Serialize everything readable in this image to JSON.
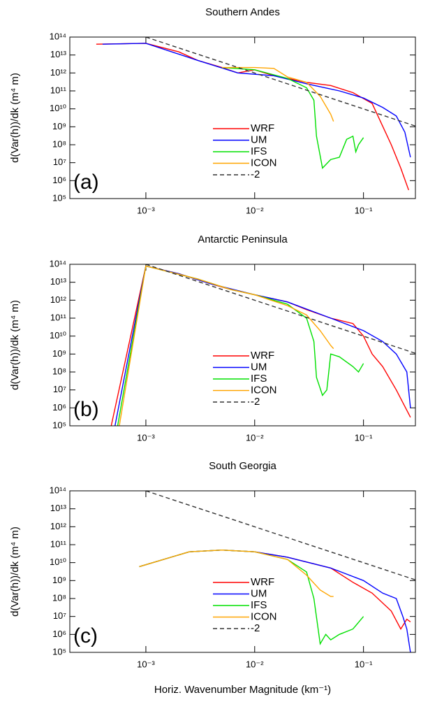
{
  "chart_data": [
    {
      "type": "line",
      "title": "Southern Andes",
      "panel_label": "(a)",
      "ylabel": "d(Var(h))/dk (m⁴ m)",
      "log_x": true,
      "log_y": true,
      "xlim": [
        0.0002,
        0.3
      ],
      "ylim": [
        100000.0,
        100000000000000.0
      ],
      "xticks": [
        {
          "value": 0.001,
          "label": "10⁻³"
        },
        {
          "value": 0.01,
          "label": "10⁻²"
        },
        {
          "value": 0.1,
          "label": "10⁻¹"
        }
      ],
      "yticks": [
        {
          "value": 100000.0,
          "label": "10⁵"
        },
        {
          "value": 1000000.0,
          "label": "10⁶"
        },
        {
          "value": 10000000.0,
          "label": "10⁷"
        },
        {
          "value": 100000000.0,
          "label": "10⁸"
        },
        {
          "value": 1000000000.0,
          "label": "10⁹"
        },
        {
          "value": 10000000000.0,
          "label": "10¹⁰"
        },
        {
          "value": 100000000000.0,
          "label": "10¹¹"
        },
        {
          "value": 1000000000000.0,
          "label": "10¹²"
        },
        {
          "value": 10000000000000.0,
          "label": "10¹³"
        },
        {
          "value": 100000000000000.0,
          "label": "10¹⁴"
        }
      ],
      "series": [
        {
          "name": "WRF",
          "color": "#ff0000",
          "x": [
            0.00035,
            0.001,
            0.002,
            0.003,
            0.005,
            0.007,
            0.01,
            0.015,
            0.02,
            0.03,
            0.05,
            0.08,
            0.12,
            0.18,
            0.22,
            0.26
          ],
          "values": [
            40000000000000.0,
            45000000000000.0,
            15000000000000.0,
            5000000000000.0,
            2000000000000.0,
            1000000000000.0,
            1500000000000.0,
            700000000000.0,
            500000000000.0,
            300000000000.0,
            200000000000.0,
            80000000000.0,
            20000000000.0,
            100000000.0,
            5000000.0,
            300000.0
          ]
        },
        {
          "name": "UM",
          "color": "#0000ff",
          "x": [
            0.0004,
            0.001,
            0.003,
            0.007,
            0.015,
            0.03,
            0.06,
            0.1,
            0.15,
            0.2,
            0.24,
            0.27
          ],
          "values": [
            40000000000000.0,
            45000000000000.0,
            5000000000000.0,
            1000000000000.0,
            700000000000.0,
            250000000000.0,
            100000000000.0,
            40000000000.0,
            12000000000.0,
            4000000000.0,
            500000000.0,
            20000000.0
          ]
        },
        {
          "name": "IFS",
          "color": "#00e000",
          "x": [
            0.005,
            0.01,
            0.02,
            0.03,
            0.035,
            0.037,
            0.042,
            0.05,
            0.06,
            0.07,
            0.08,
            0.085,
            0.09,
            0.1
          ],
          "values": [
            2000000000000.0,
            1500000000000.0,
            500000000000.0,
            150000000000.0,
            30000000000.0,
            300000000.0,
            5000000.0,
            15000000.0,
            20000000.0,
            200000000.0,
            300000000.0,
            40000000.0,
            100000000.0,
            250000000.0
          ]
        },
        {
          "name": "ICON",
          "color": "#ffa500",
          "x": [
            0.005,
            0.01,
            0.015,
            0.02,
            0.03,
            0.04,
            0.05,
            0.053
          ],
          "values": [
            2000000000000.0,
            2000000000000.0,
            1800000000000.0,
            600000000000.0,
            300000000000.0,
            50000000000.0,
            5000000000.0,
            2000000000.0
          ]
        },
        {
          "name": "-2",
          "color": "#333333",
          "linestyle": "dashed",
          "x": [
            0.001,
            0.3
          ],
          "values": [
            100000000000000.0,
            1100000000.0
          ]
        }
      ]
    },
    {
      "type": "line",
      "title": "Antarctic Peninsula",
      "panel_label": "(b)",
      "ylabel": "d(Var(h))/dk (m⁴ m)",
      "log_x": true,
      "log_y": true,
      "xlim": [
        0.0002,
        0.3
      ],
      "ylim": [
        100000.0,
        100000000000000.0
      ],
      "xticks": [
        {
          "value": 0.001,
          "label": "10⁻³"
        },
        {
          "value": 0.01,
          "label": "10⁻²"
        },
        {
          "value": 0.1,
          "label": "10⁻¹"
        }
      ],
      "yticks": [
        {
          "value": 100000.0,
          "label": "10⁵"
        },
        {
          "value": 1000000.0,
          "label": "10⁶"
        },
        {
          "value": 10000000.0,
          "label": "10⁷"
        },
        {
          "value": 100000000.0,
          "label": "10⁸"
        },
        {
          "value": 1000000000.0,
          "label": "10⁹"
        },
        {
          "value": 10000000000.0,
          "label": "10¹⁰"
        },
        {
          "value": 100000000000.0,
          "label": "10¹¹"
        },
        {
          "value": 1000000000000.0,
          "label": "10¹²"
        },
        {
          "value": 10000000000000.0,
          "label": "10¹³"
        },
        {
          "value": 100000000000000.0,
          "label": "10¹⁴"
        }
      ],
      "series": [
        {
          "name": "WRF",
          "color": "#ff0000",
          "x": [
            0.00048,
            0.001,
            0.002,
            0.004,
            0.006,
            0.01,
            0.02,
            0.03,
            0.05,
            0.08,
            0.1,
            0.12,
            0.15,
            0.2,
            0.27
          ],
          "values": [
            100000.0,
            80000000000000.0,
            30000000000000.0,
            8000000000000.0,
            4000000000000.0,
            2000000000000.0,
            800000000000.0,
            300000000000.0,
            100000000000.0,
            50000000000.0,
            10000000000.0,
            1000000000.0,
            200000000.0,
            10000000.0,
            300000.0
          ]
        },
        {
          "name": "UM",
          "color": "#0000ff",
          "x": [
            0.00052,
            0.001,
            0.002,
            0.004,
            0.01,
            0.02,
            0.05,
            0.1,
            0.15,
            0.2,
            0.25,
            0.27
          ],
          "values": [
            100000.0,
            80000000000000.0,
            30000000000000.0,
            8000000000000.0,
            2000000000000.0,
            800000000000.0,
            100000000000.0,
            20000000000.0,
            5000000000.0,
            1000000000.0,
            100000000.0,
            1000000.0
          ]
        },
        {
          "name": "IFS",
          "color": "#00e000",
          "x": [
            0.00055,
            0.001,
            0.003,
            0.006,
            0.01,
            0.02,
            0.03,
            0.035,
            0.037,
            0.042,
            0.046,
            0.05,
            0.06,
            0.08,
            0.09,
            0.1
          ],
          "values": [
            100000.0,
            80000000000000.0,
            15000000000000.0,
            4000000000000.0,
            2000000000000.0,
            600000000000.0,
            100000000000.0,
            5000000000.0,
            50000000.0,
            5000000.0,
            10000000.0,
            1000000000.0,
            700000000.0,
            200000000.0,
            100000000.0,
            300000000.0
          ]
        },
        {
          "name": "ICON",
          "color": "#ffa500",
          "x": [
            0.00057,
            0.001,
            0.003,
            0.006,
            0.01,
            0.02,
            0.03,
            0.04,
            0.05,
            0.053
          ],
          "values": [
            100000.0,
            80000000000000.0,
            15000000000000.0,
            4000000000000.0,
            2000000000000.0,
            500000000000.0,
            150000000000.0,
            20000000000.0,
            3000000000.0,
            2000000000.0
          ]
        },
        {
          "name": "-2",
          "color": "#333333",
          "linestyle": "dashed",
          "x": [
            0.001,
            0.3
          ],
          "values": [
            100000000000000.0,
            1100000000.0
          ]
        }
      ]
    },
    {
      "type": "line",
      "title": "South Georgia",
      "panel_label": "(c)",
      "ylabel": "d(Var(h))/dk (m⁴ m)",
      "xlabel": "Horiz. Wavenumber Magnitude (km⁻¹)",
      "log_x": true,
      "log_y": true,
      "xlim": [
        0.0002,
        0.3
      ],
      "ylim": [
        100000.0,
        100000000000000.0
      ],
      "xticks": [
        {
          "value": 0.001,
          "label": "10⁻³"
        },
        {
          "value": 0.01,
          "label": "10⁻²"
        },
        {
          "value": 0.1,
          "label": "10⁻¹"
        }
      ],
      "yticks": [
        {
          "value": 100000.0,
          "label": "10⁵"
        },
        {
          "value": 1000000.0,
          "label": "10⁶"
        },
        {
          "value": 10000000.0,
          "label": "10⁷"
        },
        {
          "value": 100000000.0,
          "label": "10⁸"
        },
        {
          "value": 1000000000.0,
          "label": "10⁹"
        },
        {
          "value": 10000000000.0,
          "label": "10¹⁰"
        },
        {
          "value": 100000000000.0,
          "label": "10¹¹"
        },
        {
          "value": 1000000000000.0,
          "label": "10¹²"
        },
        {
          "value": 10000000000000.0,
          "label": "10¹³"
        },
        {
          "value": 100000000000000.0,
          "label": "10¹⁴"
        }
      ],
      "series": [
        {
          "name": "WRF",
          "color": "#ff0000",
          "x": [
            0.00087,
            0.0025,
            0.005,
            0.01,
            0.02,
            0.05,
            0.08,
            0.12,
            0.18,
            0.22,
            0.25,
            0.27
          ],
          "values": [
            6000000000.0,
            40000000000.0,
            50000000000.0,
            40000000000.0,
            20000000000.0,
            5000000000.0,
            800000000.0,
            200000000.0,
            20000000.0,
            2000000.0,
            7000000.0,
            5000000.0
          ]
        },
        {
          "name": "UM",
          "color": "#0000ff",
          "x": [
            0.00087,
            0.0025,
            0.005,
            0.01,
            0.02,
            0.05,
            0.1,
            0.15,
            0.2,
            0.23,
            0.25,
            0.27
          ],
          "values": [
            6000000000.0,
            40000000000.0,
            50000000000.0,
            40000000000.0,
            20000000000.0,
            5000000000.0,
            1000000000.0,
            200000000.0,
            100000000.0,
            10000000.0,
            2000000.0,
            100000.0
          ]
        },
        {
          "name": "IFS",
          "color": "#00e000",
          "x": [
            0.00087,
            0.0025,
            0.005,
            0.01,
            0.02,
            0.03,
            0.035,
            0.04,
            0.045,
            0.05,
            0.06,
            0.08,
            0.1
          ],
          "values": [
            6000000000.0,
            40000000000.0,
            50000000000.0,
            40000000000.0,
            15000000000.0,
            3000000000.0,
            100000000.0,
            300000.0,
            1000000.0,
            500000.0,
            1000000.0,
            2000000.0,
            10000000.0
          ]
        },
        {
          "name": "ICON",
          "color": "#ffa500",
          "x": [
            0.00087,
            0.0025,
            0.005,
            0.01,
            0.02,
            0.03,
            0.04,
            0.05,
            0.053
          ],
          "values": [
            6000000000.0,
            40000000000.0,
            50000000000.0,
            40000000000.0,
            15000000000.0,
            2000000000.0,
            300000000.0,
            130000000.0,
            130000000.0
          ]
        },
        {
          "name": "-2",
          "color": "#333333",
          "linestyle": "dashed",
          "x": [
            0.001,
            0.3
          ],
          "values": [
            100000000000000.0,
            1100000000.0
          ]
        }
      ]
    }
  ]
}
